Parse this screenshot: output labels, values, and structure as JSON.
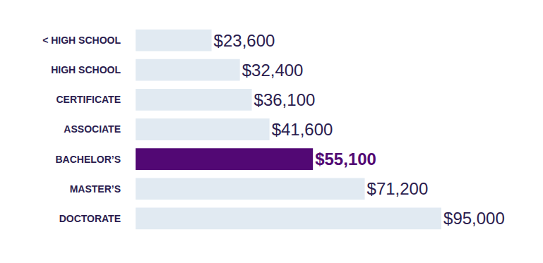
{
  "chart_data": {
    "type": "bar",
    "orientation": "horizontal",
    "categories": [
      "< HIGH SCHOOL",
      "HIGH SCHOOL",
      "CERTIFICATE",
      "ASSOCIATE",
      "BACHELOR’S",
      "MASTER’S",
      "DOCTORATE"
    ],
    "values": [
      23600,
      32400,
      36100,
      41600,
      55100,
      71200,
      95000
    ],
    "value_labels": [
      "$23,600",
      "$32,400",
      "$36,100",
      "$41,600",
      "$55,100",
      "$71,200",
      "$95,000"
    ],
    "colors": [
      "#e1eaf2",
      "#e1eaf2",
      "#e1eaf2",
      "#e1eaf2",
      "#520874",
      "#e1eaf2",
      "#e1eaf2"
    ],
    "xlim": [
      0,
      120000
    ],
    "data_labels": true,
    "tick_labels": "y",
    "grid": false
  }
}
